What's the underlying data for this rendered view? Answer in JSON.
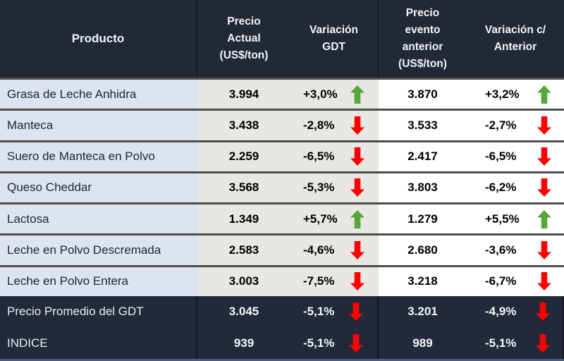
{
  "table": {
    "columns": [
      {
        "id": "product",
        "label": "Producto"
      },
      {
        "id": "price_current",
        "label": "Precio\nActual\n(US$/ton)"
      },
      {
        "id": "variation_gdt",
        "label": "Variación\nGDT"
      },
      {
        "id": "price_previous",
        "label": "Precio\nevento\nanterior\n(US$/ton)"
      },
      {
        "id": "variation_prev",
        "label": "Variación c/\nAnterior"
      }
    ],
    "rows": [
      {
        "product": "Grasa de Leche Anhidra",
        "price_current": "3.994",
        "variation_gdt": "+3,0%",
        "variation_gdt_direction": "up",
        "price_previous": "3.870",
        "variation_prev": "+3,2%",
        "variation_prev_direction": "up"
      },
      {
        "product": "Manteca",
        "price_current": "3.438",
        "variation_gdt": "-2,8%",
        "variation_gdt_direction": "down",
        "price_previous": "3.533",
        "variation_prev": "-2,7%",
        "variation_prev_direction": "down"
      },
      {
        "product": "Suero de Manteca en Polvo",
        "price_current": "2.259",
        "variation_gdt": "-6,5%",
        "variation_gdt_direction": "down",
        "price_previous": "2.417",
        "variation_prev": "-6,5%",
        "variation_prev_direction": "down"
      },
      {
        "product": "Queso Cheddar",
        "price_current": "3.568",
        "variation_gdt": "-5,3%",
        "variation_gdt_direction": "down",
        "price_previous": "3.803",
        "variation_prev": "-6,2%",
        "variation_prev_direction": "down"
      },
      {
        "product": "Lactosa",
        "price_current": "1.349",
        "variation_gdt": "+5,7%",
        "variation_gdt_direction": "up",
        "price_previous": "1.279",
        "variation_prev": "+5,5%",
        "variation_prev_direction": "up"
      },
      {
        "product": "Leche en Polvo Descremada",
        "price_current": "2.583",
        "variation_gdt": "-4,6%",
        "variation_gdt_direction": "down",
        "price_previous": "2.680",
        "variation_prev": "-3,6%",
        "variation_prev_direction": "down"
      },
      {
        "product": "Leche en Polvo Entera",
        "price_current": "3.003",
        "variation_gdt": "-7,5%",
        "variation_gdt_direction": "down",
        "price_previous": "3.218",
        "variation_prev": "-6,7%",
        "variation_prev_direction": "down"
      }
    ],
    "summary_rows": [
      {
        "product": "Precio Promedio del GDT",
        "price_current": "3.045",
        "variation_gdt": "-5,1%",
        "variation_gdt_direction": "down",
        "price_previous": "3.201",
        "variation_prev": "-4,9%",
        "variation_prev_direction": "down"
      },
      {
        "product": "INDICE",
        "price_current": "939",
        "variation_gdt": "-5,1%",
        "variation_gdt_direction": "down",
        "price_previous": "989",
        "variation_prev": "-5,1%",
        "variation_prev_direction": "down"
      }
    ]
  },
  "colors": {
    "header_bg": "#212836",
    "summary_bg": "#222a39",
    "product_cell_bg": "#dce3f1",
    "mid_cell_bg": "#e8e7e4",
    "right_cell_bg": "#ffffff",
    "up_arrow": "#57a639",
    "down_arrow": "#fe0000",
    "row_separator": "#4d4d4d",
    "bottom_strip": "#4d5b80"
  }
}
